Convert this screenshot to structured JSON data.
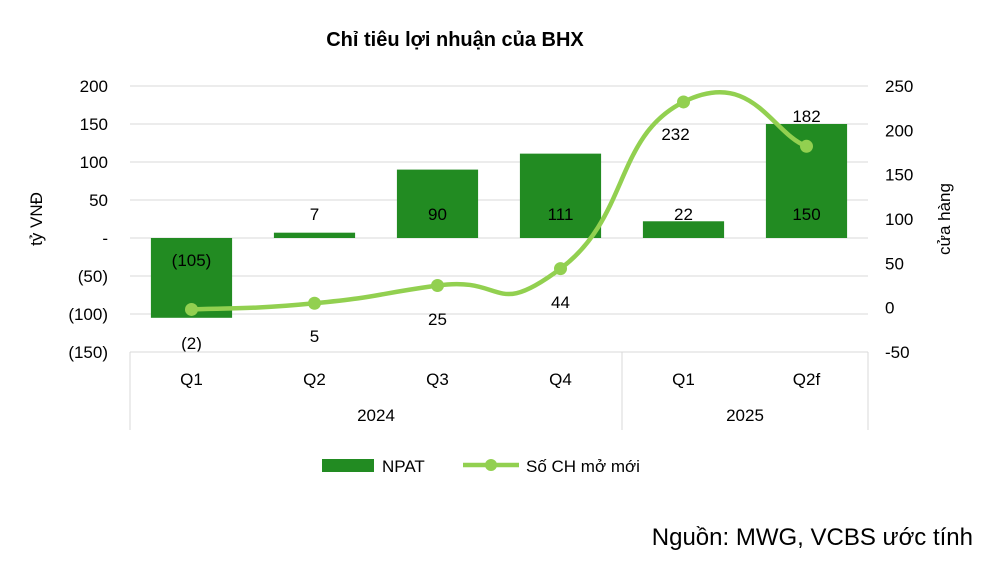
{
  "chart_data": {
    "type": "bar+line",
    "title": "Chỉ tiêu lợi nhuận của BHX",
    "categories": [
      "Q1",
      "Q2",
      "Q3",
      "Q4",
      "Q1",
      "Q2f"
    ],
    "groups": [
      {
        "label": "2024",
        "span": 4
      },
      {
        "label": "2025",
        "span": 2
      }
    ],
    "ylabel_left": "tỷ VNĐ",
    "ylabel_right": "cửa hàng",
    "ylim_left": [
      -150,
      200
    ],
    "ylim_right": [
      -50,
      250
    ],
    "yticks_left": [
      "200",
      "150",
      "100",
      "50",
      "-",
      "(50)",
      "(100)",
      "(150)"
    ],
    "yticks_right": [
      "250",
      "200",
      "150",
      "100",
      "50",
      "0",
      "-50"
    ],
    "series": [
      {
        "name": "NPAT",
        "type": "bar",
        "axis": "left",
        "color": "#228B22",
        "values": [
          -105,
          7,
          90,
          111,
          22,
          150
        ],
        "labels": [
          "(105)",
          "7",
          "90",
          "111",
          "22",
          "150"
        ]
      },
      {
        "name": "Số CH mở mới",
        "type": "line",
        "axis": "right",
        "color": "#92D050",
        "values": [
          -2,
          5,
          25,
          44,
          232,
          182
        ],
        "labels": [
          "(2)",
          "5",
          "25",
          "44",
          "232",
          "182"
        ]
      }
    ]
  },
  "source": "Nguồn: MWG, VCBS ước tính"
}
